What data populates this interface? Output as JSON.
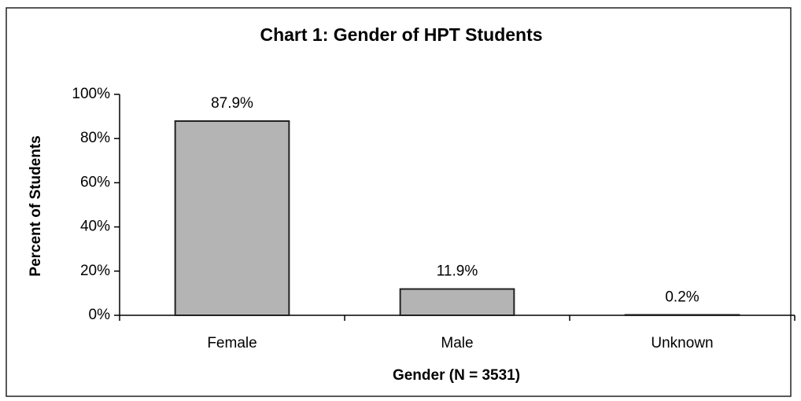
{
  "chart_data": {
    "type": "bar",
    "title": "Chart 1: Gender of HPT Students",
    "x_label": "Gender  (N = 3531)",
    "y_label": "Percent of Students",
    "categories": [
      "Female",
      "Male",
      "Unknown"
    ],
    "values": [
      87.9,
      11.9,
      0.2
    ],
    "value_labels": [
      "87.9%",
      "11.9%",
      "0.2%"
    ],
    "color": "#b4b4b4",
    "ylim": [
      0,
      100
    ],
    "yticks": [
      {
        "value": 0,
        "label": "0%"
      },
      {
        "value": 20,
        "label": "20%"
      },
      {
        "value": 40,
        "label": "40%"
      },
      {
        "value": 60,
        "label": "60%"
      },
      {
        "value": 80,
        "label": "80%"
      },
      {
        "value": 100,
        "label": "100%"
      }
    ],
    "grid": false
  }
}
